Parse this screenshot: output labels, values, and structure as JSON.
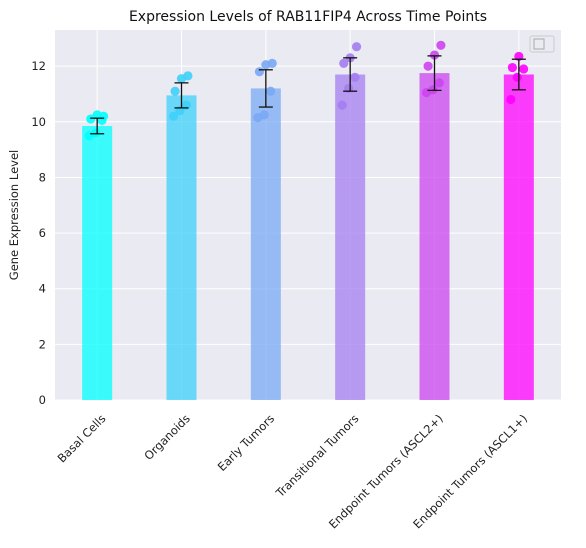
{
  "chart_data": {
    "type": "bar",
    "title": "Expression Levels of RAB11FIP4 Across Time Points",
    "xlabel": "",
    "ylabel": "Gene Expression Level",
    "ylim": [
      0,
      13.3
    ],
    "yticks": [
      "0",
      "2",
      "4",
      "6",
      "8",
      "10",
      "12"
    ],
    "grid": true,
    "legend": "top-right (empty)",
    "categories": [
      "Basal Cells",
      "Organoids",
      "Early Tumors",
      "Transitional Tumors",
      "Endpoint Tumors (ASCL2+)",
      "Endpoint Tumors (ASCL1+)"
    ],
    "values": [
      9.85,
      10.95,
      11.2,
      11.7,
      11.75,
      11.7
    ],
    "errors": [
      0.28,
      0.45,
      0.67,
      0.6,
      0.62,
      0.55
    ],
    "colors": [
      "#00ffff",
      "#3ed0f8",
      "#7aa9f4",
      "#a47df0",
      "#cc44f0",
      "#ff00ff"
    ],
    "points": [
      [
        9.5,
        9.6,
        10.05,
        10.1,
        10.25,
        10.2
      ],
      [
        10.2,
        10.4,
        10.6,
        11.1,
        11.55,
        11.65
      ],
      [
        10.15,
        10.25,
        11.1,
        11.8,
        12.05,
        12.1
      ],
      [
        10.6,
        11.2,
        11.6,
        12.1,
        12.3,
        12.7
      ],
      [
        11.05,
        11.15,
        11.4,
        12.0,
        12.4,
        12.75
      ],
      [
        10.8,
        11.6,
        11.9,
        11.95,
        12.35
      ]
    ]
  }
}
